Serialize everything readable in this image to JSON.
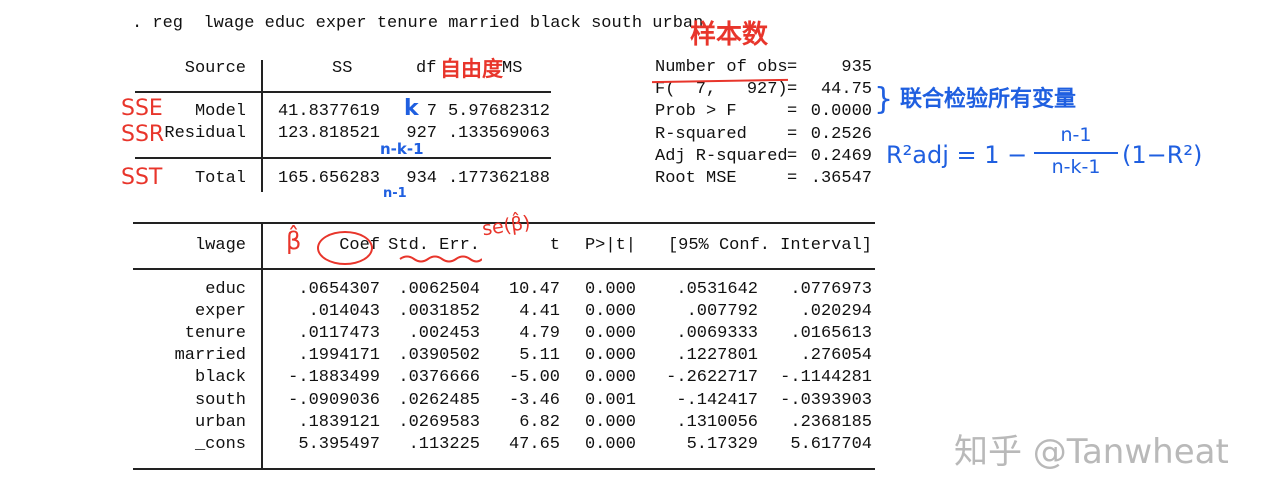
{
  "command": ". reg  lwage educ exper tenure married black south urban",
  "anova": {
    "headers": {
      "source": "Source",
      "ss": "SS",
      "df": "df",
      "ms": "MS"
    },
    "rows": [
      {
        "source": "Model",
        "ss": "41.8377619",
        "df": "7",
        "ms": "5.97682312"
      },
      {
        "source": "Residual",
        "ss": "123.818521",
        "df": "927",
        "ms": ".133569063"
      },
      {
        "source": "Total",
        "ss": "165.656283",
        "df": "934",
        "ms": ".177362188"
      }
    ]
  },
  "stats": [
    {
      "label": "Number of obs",
      "eq": "=",
      "value": "935"
    },
    {
      "label": "F(  7,   927)",
      "eq": "=",
      "value": "44.75"
    },
    {
      "label": "Prob > F",
      "eq": "=",
      "value": "0.0000"
    },
    {
      "label": "R-squared",
      "eq": "=",
      "value": "0.2526"
    },
    {
      "label": "Adj R-squared",
      "eq": "=",
      "value": "0.2469"
    },
    {
      "label": "Root MSE",
      "eq": "=",
      "value": ".36547"
    }
  ],
  "coef_table": {
    "headers": {
      "dep": "lwage",
      "coef": "Coef",
      "se": "Std. Err.",
      "t": "t",
      "p": "P>|t|",
      "ci": "[95% Conf. Interval]"
    },
    "rows": [
      {
        "var": "educ",
        "coef": ".0654307",
        "se": ".0062504",
        "t": "10.47",
        "p": "0.000",
        "lo": ".0531642",
        "hi": ".0776973"
      },
      {
        "var": "exper",
        "coef": ".014043",
        "se": ".0031852",
        "t": "4.41",
        "p": "0.000",
        "lo": ".007792",
        "hi": ".020294"
      },
      {
        "var": "tenure",
        "coef": ".0117473",
        "se": ".002453",
        "t": "4.79",
        "p": "0.000",
        "lo": ".0069333",
        "hi": ".0165613"
      },
      {
        "var": "married",
        "coef": ".1994171",
        "se": ".0390502",
        "t": "5.11",
        "p": "0.000",
        "lo": ".1227801",
        "hi": ".276054"
      },
      {
        "var": "black",
        "coef": "-.1883499",
        "se": ".0376666",
        "t": "-5.00",
        "p": "0.000",
        "lo": "-.2622717",
        "hi": "-.1144281"
      },
      {
        "var": "south",
        "coef": "-.0909036",
        "se": ".0262485",
        "t": "-3.46",
        "p": "0.001",
        "lo": "-.142417",
        "hi": "-.0393903"
      },
      {
        "var": "urban",
        "coef": ".1839121",
        "se": ".0269583",
        "t": "6.82",
        "p": "0.000",
        "lo": ".1310056",
        "hi": ".2368185"
      },
      {
        "var": "_cons",
        "coef": "5.395497",
        "se": ".113225",
        "t": "47.65",
        "p": "0.000",
        "lo": "5.17329",
        "hi": "5.617704"
      }
    ]
  },
  "annotations": {
    "sample_size": "样本数",
    "degrees_of_freedom": "自由度",
    "sse": "SSE",
    "ssr": "SSR",
    "sst": "SST",
    "k": "k",
    "n_k_1": "n-k-1",
    "n_1": "n-1",
    "joint_test": "联合检验所有变量",
    "formula_lhs": "R²adj = 1 −",
    "formula_num": "n-1",
    "formula_den": "n-k-1",
    "formula_rhs": "(1−R²)",
    "beta_hat": "β̂",
    "se_beta": "se(β̂)",
    "red": "#e8352b",
    "blue": "#1f5fe0"
  },
  "watermark": "知乎 @Tanwheat"
}
